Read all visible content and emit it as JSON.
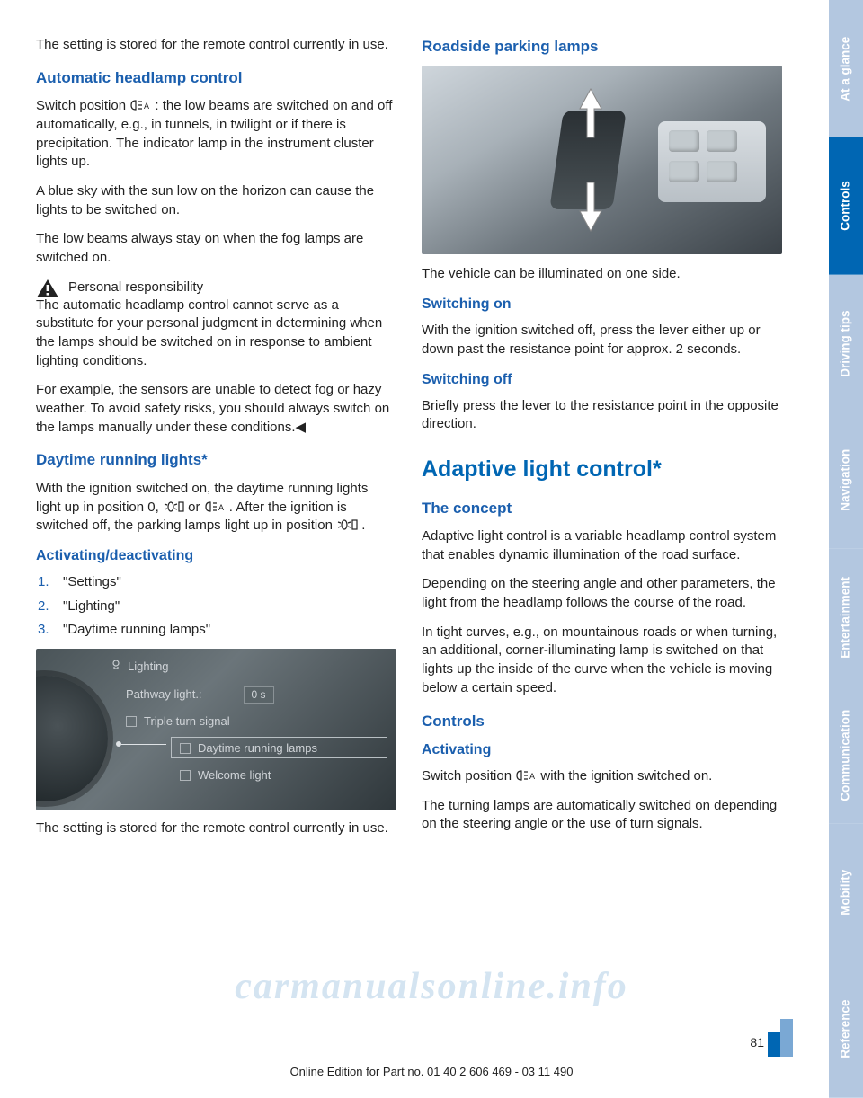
{
  "colors": {
    "heading": "#1b5fae",
    "bigheading": "#0066b3",
    "tab_dim": "#b3c7e0",
    "tab_active": "#0066b3",
    "watermark": "rgba(120,170,210,.32)"
  },
  "tabs": [
    {
      "label": "At a glance",
      "state": "dim"
    },
    {
      "label": "Controls",
      "state": "active"
    },
    {
      "label": "Driving tips",
      "state": "dim"
    },
    {
      "label": "Navigation",
      "state": "dim"
    },
    {
      "label": "Entertainment",
      "state": "dim"
    },
    {
      "label": "Communication",
      "state": "dim"
    },
    {
      "label": "Mobility",
      "state": "dim"
    },
    {
      "label": "Reference",
      "state": "ref"
    }
  ],
  "left": {
    "p1": "The setting is stored for the remote control currently in use.",
    "h1": "Automatic headlamp control",
    "p2a": "Switch position ",
    "p2b": " : the low beams are switched on and off automatically, e.g., in tunnels, in twilight or if there is precipitation. The indicator lamp in the instrument cluster lights up.",
    "p3": "A blue sky with the sun low on the horizon can cause the lights to be switched on.",
    "p4": "The low beams always stay on when the fog lamps are switched on.",
    "warn_title": "Personal responsibility",
    "warn_body": "The automatic headlamp control cannot serve as a substitute for your personal judgment in determining when the lamps should be switched on in response to ambient lighting conditions.",
    "p5": "For example, the sensors are unable to detect fog or hazy weather. To avoid safety risks, you should always switch on the lamps manually under these conditions.◀",
    "h2": "Daytime running lights*",
    "p6a": "With the ignition switched on, the daytime running lights light up in position 0, ",
    "p6b": " or ",
    "p6c": " . After the ignition is switched off, the parking lamps light up in position ",
    "p6d": " .",
    "h3": "Activating/deactivating",
    "steps": [
      "\"Settings\"",
      "\"Lighting\"",
      "\"Daytime running lamps\""
    ],
    "screenshot": {
      "title": "Lighting",
      "rows": [
        {
          "label": "Pathway light.:",
          "value": "0 s"
        },
        {
          "label": "Triple turn signal"
        },
        {
          "label": "Daytime running lamps",
          "highlight": true
        },
        {
          "label": "Welcome light"
        }
      ]
    },
    "p7": "The setting is stored for the remote control currently in use."
  },
  "right": {
    "h1": "Roadside parking lamps",
    "p1": "The vehicle can be illuminated on one side.",
    "h2": "Switching on",
    "p2": "With the ignition switched off, press the lever either up or down past the resistance point for approx. 2 seconds.",
    "h3": "Switching off",
    "p3": "Briefly press the lever to the resistance point in the opposite direction.",
    "hbig": "Adaptive light control*",
    "h4": "The concept",
    "p4": "Adaptive light control is a variable headlamp control system that enables dynamic illumination of the road surface.",
    "p5": "Depending on the steering angle and other parameters, the light from the headlamp follows the course of the road.",
    "p6": "In tight curves, e.g., on mountainous roads or when turning, an additional, corner-illuminating lamp is switched on that lights up the inside of the curve when the vehicle is moving below a certain speed.",
    "h5": "Controls",
    "h6": "Activating",
    "p7a": "Switch position ",
    "p7b": " with the ignition switched on.",
    "p8": "The turning lamps are automatically switched on depending on the steering angle or the use of turn signals."
  },
  "page_number": "81",
  "footer": "Online Edition for Part no. 01 40 2 606 469 - 03 11 490",
  "watermark": "carmanualsonline.info",
  "page_bar_colors": [
    "#0066b3",
    "#7aa8d4"
  ],
  "page_bar_heights": [
    28,
    42
  ]
}
